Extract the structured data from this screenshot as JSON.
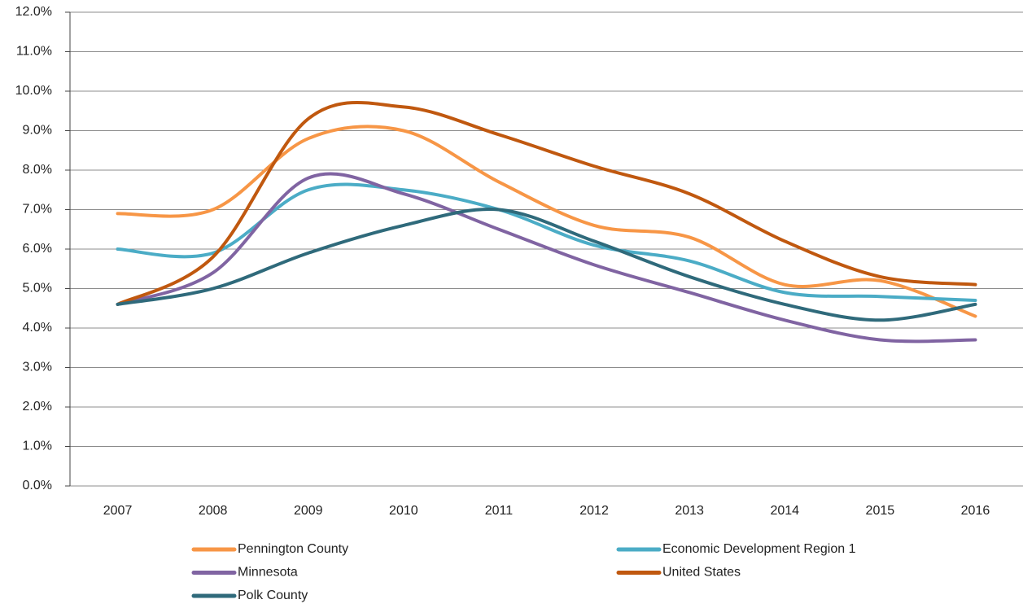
{
  "chart_data": {
    "type": "line",
    "categories": [
      "2007",
      "2008",
      "2009",
      "2010",
      "2011",
      "2012",
      "2013",
      "2014",
      "2015",
      "2016"
    ],
    "series": [
      {
        "name": "Pennington County",
        "color": "#f79646",
        "values": [
          6.9,
          7.0,
          8.8,
          9.0,
          7.7,
          6.6,
          6.3,
          5.1,
          5.2,
          4.3
        ]
      },
      {
        "name": "Economic Development Region 1",
        "color": "#4bacc6",
        "values": [
          6.0,
          5.9,
          7.5,
          7.5,
          7.0,
          6.1,
          5.7,
          4.9,
          4.8,
          4.7
        ]
      },
      {
        "name": "Minnesota",
        "color": "#8064a2",
        "values": [
          4.6,
          5.4,
          7.8,
          7.4,
          6.5,
          5.6,
          4.9,
          4.2,
          3.7,
          3.7
        ]
      },
      {
        "name": "United States",
        "color": "#c0580f",
        "values": [
          4.6,
          5.8,
          9.3,
          9.6,
          8.9,
          8.1,
          7.4,
          6.2,
          5.3,
          5.1
        ]
      },
      {
        "name": "Polk County",
        "color": "#2f6a7b",
        "values": [
          4.6,
          5.0,
          5.9,
          6.6,
          7.0,
          6.2,
          5.3,
          4.6,
          4.2,
          4.6
        ]
      }
    ],
    "ylim": [
      0,
      12
    ],
    "yticks": [
      {
        "value": 0,
        "label": "0.0%"
      },
      {
        "value": 1,
        "label": "1.0%"
      },
      {
        "value": 2,
        "label": "2.0%"
      },
      {
        "value": 3,
        "label": "3.0%"
      },
      {
        "value": 4,
        "label": "4.0%"
      },
      {
        "value": 5,
        "label": "5.0%"
      },
      {
        "value": 6,
        "label": "6.0%"
      },
      {
        "value": 7,
        "label": "7.0%"
      },
      {
        "value": 8,
        "label": "8.0%"
      },
      {
        "value": 9,
        "label": "9.0%"
      },
      {
        "value": 10,
        "label": "10.0%"
      },
      {
        "value": 11,
        "label": "11.0%"
      },
      {
        "value": 12,
        "label": "12.0%"
      }
    ],
    "grid": true,
    "legend": "bottom"
  }
}
